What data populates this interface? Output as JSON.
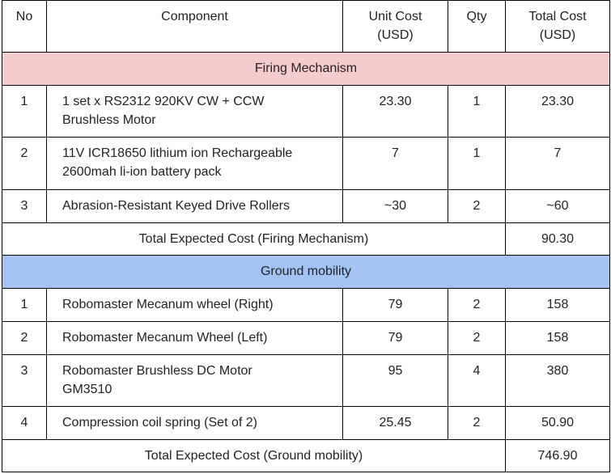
{
  "headers": {
    "no": "No",
    "component": "Component",
    "unit_cost_1": "Unit Cost",
    "unit_cost_2": "(USD)",
    "qty": "Qty",
    "total_cost_1": "Total Cost",
    "total_cost_2": "(USD)"
  },
  "sections": [
    {
      "title": "Firing Mechanism",
      "bg_color": "#f4cccc",
      "rows": [
        {
          "no": "1",
          "component_1": "1 set x RS2312 920KV CW + CCW",
          "component_2": "Brushless Motor",
          "unit_cost": "23.30",
          "qty": "1",
          "total": "23.30"
        },
        {
          "no": "2",
          "component_1": "11V ICR18650 lithium ion Rechargeable",
          "component_2": "2600mah li-ion battery pack",
          "unit_cost": "7",
          "qty": "1",
          "total": "7"
        },
        {
          "no": "3",
          "component_1": "Abrasion-Resistant Keyed Drive Rollers",
          "component_2": "",
          "unit_cost": "~30",
          "qty": "2",
          "total": "~60"
        }
      ],
      "total_label": "Total Expected Cost (Firing Mechanism)",
      "total_value": "90.30"
    },
    {
      "title": "Ground mobility",
      "bg_color": "#a4c2f4",
      "rows": [
        {
          "no": "1",
          "component_1": "Robomaster Mecanum wheel (Right)",
          "component_2": "",
          "unit_cost": "79",
          "qty": "2",
          "total": "158"
        },
        {
          "no": "2",
          "component_1": "Robomaster Mecanum Wheel (Left)",
          "component_2": "",
          "unit_cost": "79",
          "qty": "2",
          "total": "158"
        },
        {
          "no": "3",
          "component_1": "Robomaster Brushless DC Motor",
          "component_2": "GM3510",
          "unit_cost": "95",
          "qty": "4",
          "total": "380"
        },
        {
          "no": "4",
          "component_1": "Compression coil spring (Set of 2)",
          "component_2": "",
          "unit_cost": "25.45",
          "qty": "2",
          "total": "50.90"
        }
      ],
      "total_label": "Total Expected Cost (Ground mobility)",
      "total_value": "746.90"
    }
  ]
}
